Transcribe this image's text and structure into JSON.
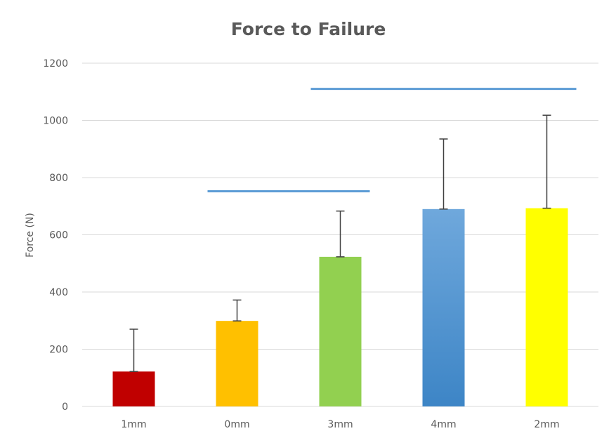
{
  "chart_data": {
    "type": "bar",
    "title": "Force to Failure",
    "xlabel": "",
    "ylabel": "Force (N)",
    "ylim": [
      0,
      1200
    ],
    "yticks": [
      0,
      200,
      400,
      600,
      800,
      1000,
      1200
    ],
    "grid": true,
    "legend": "none",
    "categories": [
      "1mm",
      "0mm",
      "3mm",
      "4mm",
      "2mm"
    ],
    "values": [
      122,
      299,
      523,
      690,
      693
    ],
    "error_upper": [
      148,
      73,
      160,
      245,
      325
    ],
    "colors": [
      "#c00000",
      "#ffc000",
      "#92d050",
      "#5b9bd5",
      "#ffff00"
    ],
    "brackets": [
      {
        "from_category": "0mm",
        "to_category": "3mm",
        "y": 752,
        "color": "#5b9bd5"
      },
      {
        "from_category": "3mm",
        "to_category": "2mm",
        "y": 1110,
        "color": "#5b9bd5"
      }
    ]
  }
}
